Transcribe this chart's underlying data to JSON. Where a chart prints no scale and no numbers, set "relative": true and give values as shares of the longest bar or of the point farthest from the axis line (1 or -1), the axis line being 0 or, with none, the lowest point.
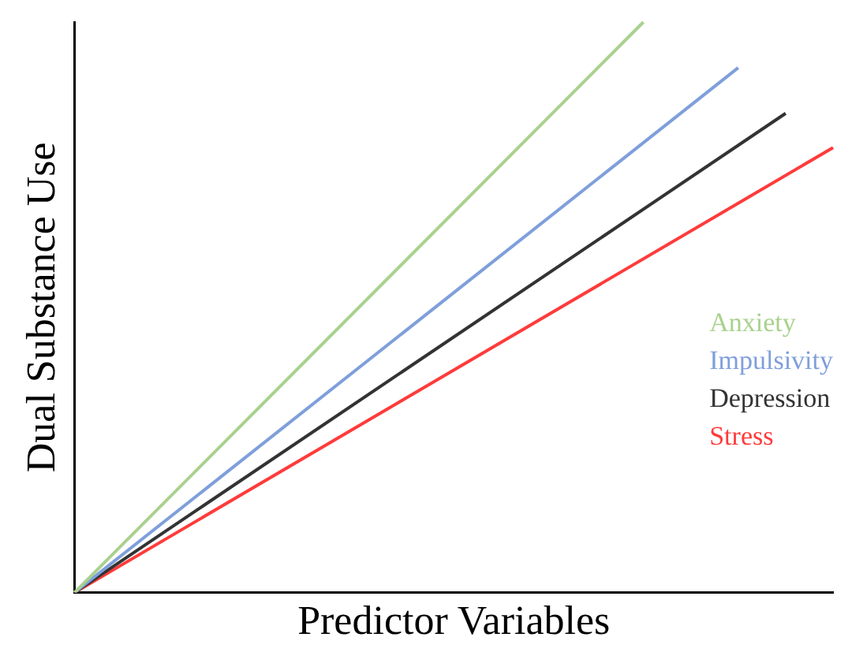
{
  "chart_data": {
    "type": "line",
    "relative": true,
    "xlabel": "Predictor Variables",
    "ylabel": "Dual Substance Use",
    "grid": false,
    "marker": "none",
    "line_style": "solid",
    "categories": [
      null,
      null,
      null,
      null,
      null,
      null,
      null,
      null,
      null,
      null,
      null,
      null,
      null,
      null,
      null,
      null,
      null
    ],
    "series": [
      {
        "name": "Anxiety",
        "color": "#a9d18e",
        "values": [
          0,
          null,
          null,
          null,
          null,
          null,
          null,
          null,
          null,
          null,
          null,
          null,
          1,
          null,
          null,
          null,
          null
        ]
      },
      {
        "name": "Impulsivity",
        "color": "#7f9fdb",
        "values": [
          0,
          null,
          null,
          null,
          null,
          null,
          null,
          null,
          null,
          null,
          null,
          null,
          null,
          null,
          0.92,
          null,
          null
        ]
      },
      {
        "name": "Depression",
        "color": "#333333",
        "values": [
          0,
          null,
          null,
          null,
          null,
          null,
          null,
          null,
          null,
          null,
          null,
          null,
          null,
          null,
          null,
          0.84,
          null
        ]
      },
      {
        "name": "Stress",
        "color": "#ff3b3b",
        "values": [
          0,
          null,
          null,
          null,
          null,
          null,
          null,
          null,
          null,
          null,
          null,
          null,
          null,
          null,
          null,
          null,
          0.78
        ]
      }
    ]
  }
}
